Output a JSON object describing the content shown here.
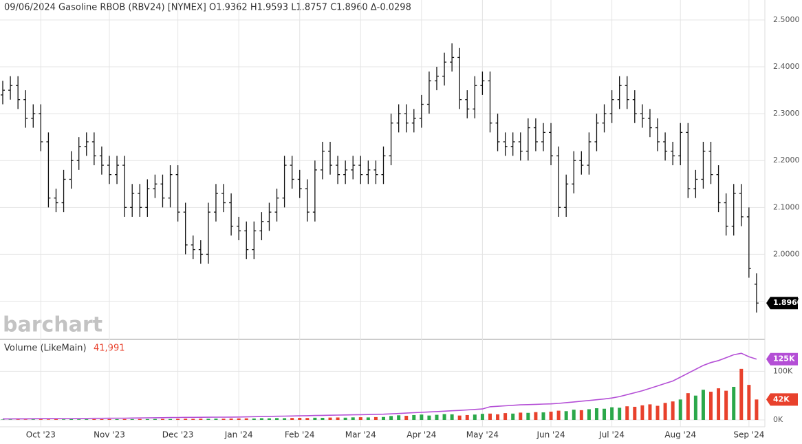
{
  "watermark": "barchart",
  "chart_data": [
    {
      "type": "ohlc",
      "title": "09/06/2024 Gasoline RBOB (RBV24) [NYMEX] O1.9362 H1.9593 L1.8757 C1.8960 Δ-0.0298",
      "categories": [
        null,
        null,
        null,
        null,
        null,
        "Oct '23",
        null,
        null,
        null,
        null,
        null,
        null,
        null,
        null,
        "Nov '23",
        null,
        null,
        null,
        null,
        null,
        null,
        null,
        null,
        "Dec '23",
        null,
        null,
        null,
        null,
        null,
        null,
        null,
        "Jan '24",
        null,
        null,
        null,
        null,
        null,
        null,
        null,
        "Feb '24",
        null,
        null,
        null,
        null,
        null,
        null,
        null,
        "Mar '24",
        null,
        null,
        null,
        null,
        null,
        null,
        null,
        "Apr '24",
        null,
        null,
        null,
        null,
        null,
        null,
        null,
        "May '24",
        null,
        null,
        null,
        null,
        null,
        null,
        null,
        null,
        "Jun '24",
        null,
        null,
        null,
        null,
        null,
        null,
        null,
        "Jul '24",
        null,
        null,
        null,
        null,
        null,
        null,
        null,
        null,
        "Aug '24",
        null,
        null,
        null,
        null,
        null,
        null,
        null,
        null,
        "Sep '24",
        null
      ],
      "open": [
        2.34,
        2.35,
        2.36,
        2.33,
        2.29,
        2.3,
        2.24,
        2.12,
        2.11,
        2.16,
        2.2,
        2.23,
        2.24,
        2.21,
        2.19,
        2.17,
        2.19,
        2.1,
        2.13,
        2.1,
        2.14,
        2.15,
        2.12,
        2.17,
        2.09,
        2.02,
        2.01,
        2.0,
        2.09,
        2.13,
        2.11,
        2.06,
        2.05,
        2.01,
        2.05,
        2.07,
        2.09,
        2.12,
        2.19,
        2.16,
        2.14,
        2.09,
        2.18,
        2.22,
        2.19,
        2.17,
        2.18,
        2.19,
        2.17,
        2.18,
        2.17,
        2.21,
        2.28,
        2.3,
        2.28,
        2.29,
        2.32,
        2.37,
        2.38,
        2.41,
        2.42,
        2.33,
        2.31,
        2.36,
        2.37,
        2.28,
        2.24,
        2.23,
        2.24,
        2.22,
        2.27,
        2.24,
        2.26,
        2.21,
        2.1,
        2.15,
        2.2,
        2.19,
        2.24,
        2.28,
        2.3,
        2.33,
        2.36,
        2.33,
        2.3,
        2.29,
        2.27,
        2.24,
        2.22,
        2.21,
        2.26,
        2.14,
        2.16,
        2.22,
        2.17,
        2.11,
        2.06,
        2.13,
        2.08,
        1.9362
      ],
      "high": [
        2.37,
        2.38,
        2.38,
        2.35,
        2.32,
        2.32,
        2.26,
        2.14,
        2.18,
        2.22,
        2.25,
        2.26,
        2.26,
        2.23,
        2.21,
        2.21,
        2.21,
        2.15,
        2.15,
        2.16,
        2.17,
        2.17,
        2.19,
        2.19,
        2.11,
        2.04,
        2.03,
        2.11,
        2.15,
        2.15,
        2.13,
        2.08,
        2.07,
        2.07,
        2.09,
        2.11,
        2.14,
        2.21,
        2.21,
        2.18,
        2.16,
        2.2,
        2.24,
        2.24,
        2.21,
        2.2,
        2.21,
        2.21,
        2.2,
        2.2,
        2.23,
        2.3,
        2.32,
        2.32,
        2.31,
        2.34,
        2.39,
        2.4,
        2.43,
        2.45,
        2.44,
        2.35,
        2.38,
        2.39,
        2.39,
        2.3,
        2.26,
        2.26,
        2.26,
        2.29,
        2.29,
        2.28,
        2.28,
        2.23,
        2.17,
        2.22,
        2.22,
        2.26,
        2.3,
        2.32,
        2.35,
        2.38,
        2.38,
        2.35,
        2.32,
        2.31,
        2.29,
        2.26,
        2.24,
        2.28,
        2.28,
        2.18,
        2.24,
        2.24,
        2.19,
        2.13,
        2.15,
        2.15,
        2.1,
        1.9593
      ],
      "low": [
        2.32,
        2.33,
        2.31,
        2.27,
        2.27,
        2.22,
        2.1,
        2.09,
        2.09,
        2.14,
        2.18,
        2.21,
        2.19,
        2.17,
        2.15,
        2.15,
        2.08,
        2.08,
        2.08,
        2.08,
        2.12,
        2.1,
        2.1,
        2.07,
        2.0,
        1.99,
        1.98,
        1.98,
        2.07,
        2.09,
        2.04,
        2.03,
        1.99,
        1.99,
        2.03,
        2.05,
        2.07,
        2.1,
        2.14,
        2.12,
        2.07,
        2.07,
        2.16,
        2.17,
        2.15,
        2.15,
        2.16,
        2.15,
        2.15,
        2.15,
        2.15,
        2.19,
        2.26,
        2.26,
        2.26,
        2.27,
        2.3,
        2.35,
        2.36,
        2.39,
        2.31,
        2.29,
        2.29,
        2.34,
        2.26,
        2.22,
        2.21,
        2.21,
        2.2,
        2.2,
        2.22,
        2.22,
        2.19,
        2.08,
        2.08,
        2.13,
        2.17,
        2.17,
        2.22,
        2.26,
        2.28,
        2.31,
        2.31,
        2.28,
        2.27,
        2.25,
        2.22,
        2.2,
        2.19,
        2.19,
        2.12,
        2.12,
        2.14,
        2.15,
        2.09,
        2.04,
        2.04,
        2.06,
        1.95,
        1.8757
      ],
      "close": [
        2.35,
        2.36,
        2.33,
        2.29,
        2.3,
        2.24,
        2.12,
        2.11,
        2.16,
        2.2,
        2.23,
        2.24,
        2.21,
        2.19,
        2.17,
        2.19,
        2.1,
        2.13,
        2.1,
        2.14,
        2.15,
        2.12,
        2.17,
        2.09,
        2.02,
        2.01,
        2.0,
        2.09,
        2.13,
        2.11,
        2.06,
        2.05,
        2.01,
        2.05,
        2.07,
        2.09,
        2.12,
        2.19,
        2.16,
        2.14,
        2.09,
        2.18,
        2.22,
        2.19,
        2.17,
        2.18,
        2.19,
        2.17,
        2.18,
        2.17,
        2.21,
        2.28,
        2.3,
        2.28,
        2.29,
        2.32,
        2.37,
        2.38,
        2.41,
        2.42,
        2.33,
        2.31,
        2.36,
        2.37,
        2.28,
        2.24,
        2.23,
        2.24,
        2.22,
        2.27,
        2.24,
        2.26,
        2.21,
        2.1,
        2.15,
        2.2,
        2.19,
        2.24,
        2.28,
        2.3,
        2.33,
        2.36,
        2.33,
        2.3,
        2.29,
        2.27,
        2.24,
        2.22,
        2.21,
        2.26,
        2.14,
        2.16,
        2.22,
        2.17,
        2.11,
        2.06,
        2.13,
        2.08,
        1.97,
        1.896
      ],
      "last_label": "1.8960",
      "color": "#111111",
      "badge_color": "#000000",
      "ylim": [
        1.82,
        2.5425
      ],
      "yticks": [
        {
          "value": 2.5,
          "label": "2.5000"
        },
        {
          "value": 2.4,
          "label": "2.4000"
        },
        {
          "value": 2.3,
          "label": "2.3000"
        },
        {
          "value": 2.2,
          "label": "2.2000"
        },
        {
          "value": 2.1,
          "label": "2.1000"
        },
        {
          "value": 2.0,
          "label": "2.0000"
        },
        {
          "value": 1.9,
          "label": "1.9000"
        }
      ],
      "grid": true
    },
    {
      "type": "volume",
      "title": "Volume  (LikeMain)",
      "ylim": [
        0,
        160000
      ],
      "yticks": [
        {
          "value": 0,
          "label": "0K"
        },
        {
          "value": 100000,
          "label": "100K"
        }
      ],
      "grid": true,
      "series": [
        {
          "type": "bar",
          "up_color": "#2ba84a",
          "down_color": "#e8412c",
          "values": [
            800,
            900,
            1000,
            900,
            1100,
            1200,
            1000,
            1300,
            1100,
            1400,
            1200,
            1300,
            1500,
            1400,
            1600,
            1500,
            1700,
            1600,
            1800,
            1700,
            1900,
            2000,
            1800,
            2200,
            2400,
            2100,
            2500,
            2300,
            2600,
            2400,
            2800,
            3000,
            3200,
            2900,
            3500,
            3300,
            3800,
            3600,
            4000,
            4200,
            3900,
            4500,
            4300,
            4800,
            5000,
            4600,
            5200,
            5500,
            5100,
            5800,
            6000,
            8000,
            9500,
            8500,
            10000,
            11000,
            9000,
            10500,
            12000,
            11500,
            9000,
            10000,
            11000,
            12500,
            13000,
            11500,
            14000,
            13000,
            15000,
            14500,
            16000,
            15500,
            17000,
            19000,
            18000,
            21000,
            20000,
            22000,
            24000,
            23000,
            26000,
            25000,
            28000,
            27000,
            30000,
            32000,
            29000,
            35000,
            38000,
            42000,
            55000,
            50000,
            62000,
            58000,
            65000,
            60000,
            68000,
            105000,
            72000,
            41991
          ],
          "last_labels": [
            "41,991",
            "42K"
          ]
        },
        {
          "type": "line",
          "color": "#b44fd6",
          "values": [
            2000,
            2100,
            2200,
            2300,
            2400,
            2500,
            2600,
            2700,
            2800,
            2900,
            3000,
            3100,
            3200,
            3300,
            3400,
            3500,
            3600,
            3800,
            4000,
            4200,
            4400,
            4600,
            4800,
            5000,
            5200,
            5300,
            5400,
            5500,
            5600,
            5700,
            5800,
            6000,
            6300,
            6600,
            6900,
            7200,
            7500,
            7800,
            8100,
            8400,
            8700,
            9000,
            9300,
            9600,
            9900,
            10200,
            10500,
            10800,
            11100,
            11400,
            11700,
            12500,
            13200,
            14000,
            14800,
            15600,
            16400,
            17200,
            18000,
            18800,
            19600,
            20500,
            21500,
            22500,
            27000,
            28000,
            29000,
            30000,
            31000,
            31500,
            32000,
            32500,
            33000,
            34000,
            35500,
            37000,
            38500,
            40000,
            41500,
            43000,
            45000,
            48000,
            52000,
            56000,
            60000,
            65000,
            70000,
            75000,
            80000,
            88000,
            96000,
            104000,
            112000,
            118000,
            122000,
            128000,
            134000,
            137000,
            130000,
            125000
          ],
          "last_labels": [
            "125K"
          ]
        }
      ]
    }
  ]
}
